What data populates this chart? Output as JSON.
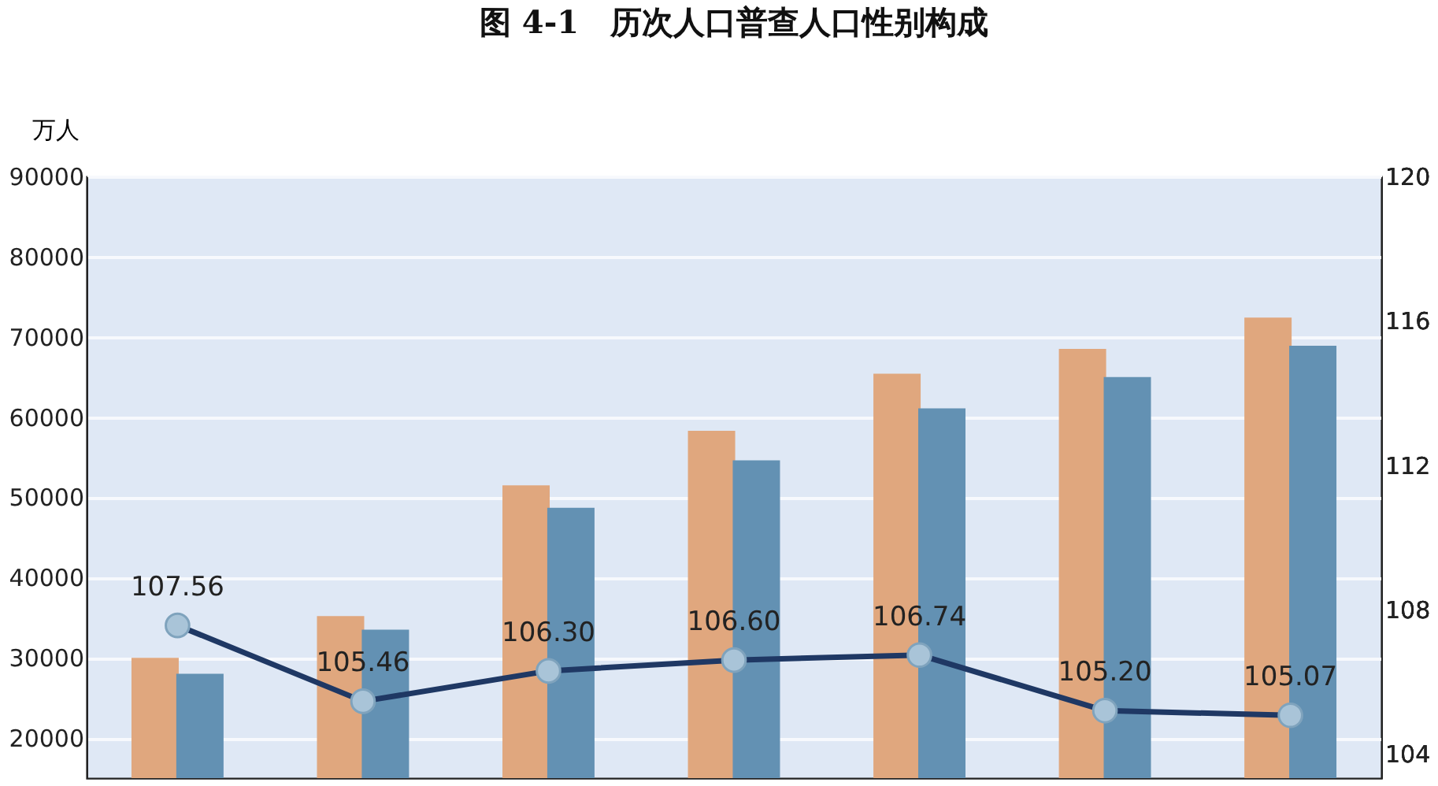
{
  "chart_data": {
    "type": "bar",
    "title": "图 4-1　历次人口普查人口性别构成",
    "ylabel": "万人",
    "categories": [
      null,
      null,
      null,
      null,
      null,
      null,
      null
    ],
    "series": [
      {
        "color": "#e0a77e",
        "values": [
          30000,
          35200,
          51500,
          58300,
          65400,
          68500,
          72400
        ]
      },
      {
        "color": "#6391b3",
        "values": [
          28000,
          33500,
          48700,
          54600,
          61100,
          65000,
          68900
        ]
      },
      {
        "type": "line",
        "axis": "y2",
        "color": "#1f3864",
        "marker": "circle",
        "values": [
          107.56,
          105.46,
          106.3,
          106.6,
          106.74,
          105.2,
          105.07
        ],
        "value_labels": [
          "107.56",
          "105.46",
          "106.30",
          "106.60",
          "106.74",
          "105.20",
          "105.07"
        ]
      }
    ],
    "ylim": [
      15000,
      90000
    ],
    "yticks": [
      20000,
      30000,
      40000,
      50000,
      60000,
      70000,
      80000,
      90000
    ],
    "y2lim": [
      103.33,
      120
    ],
    "y2ticks": [
      104,
      108,
      112,
      116,
      120
    ],
    "grid": "y",
    "tick_labels": "y"
  }
}
